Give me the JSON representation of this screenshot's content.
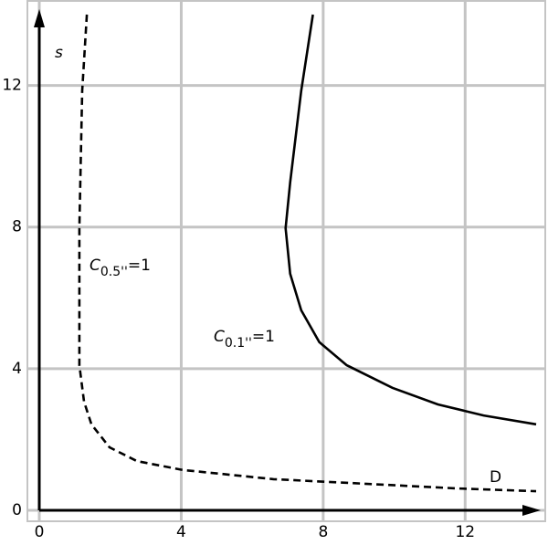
{
  "chart_data": {
    "type": "line",
    "x_label": "D",
    "y_label": "s",
    "xlim": [
      0,
      14
    ],
    "ylim": [
      0,
      14
    ],
    "xticks": [
      0,
      4,
      8,
      12
    ],
    "yticks": [
      0,
      4,
      8,
      12
    ],
    "grid": true,
    "series": [
      {
        "style": "dashed",
        "color": "#000000",
        "x": [
          1.34,
          1.21,
          1.13,
          1.13,
          1.26,
          1.47,
          1.98,
          2.75,
          4.04,
          6.6,
          9.18,
          11.75,
          14
        ],
        "values": [
          14,
          11.85,
          7.97,
          4.1,
          3.07,
          2.43,
          1.78,
          1.39,
          1.14,
          0.88,
          0.75,
          0.62,
          0.54
        ]
      },
      {
        "style": "solid",
        "color": "#000000",
        "x": [
          7.71,
          7.38,
          7.07,
          6.94,
          7.07,
          7.38,
          7.89,
          8.66,
          9.95,
          11.23,
          12.52,
          14
        ],
        "values": [
          14,
          11.85,
          9.26,
          7.97,
          6.68,
          5.65,
          4.75,
          4.1,
          3.46,
          2.99,
          2.68,
          2.43
        ]
      }
    ],
    "annotations": [
      {
        "base": "C",
        "sub": "0.5''",
        "rest": "=1"
      },
      {
        "base": "C",
        "sub": "0.1''",
        "rest": "=1"
      }
    ]
  }
}
